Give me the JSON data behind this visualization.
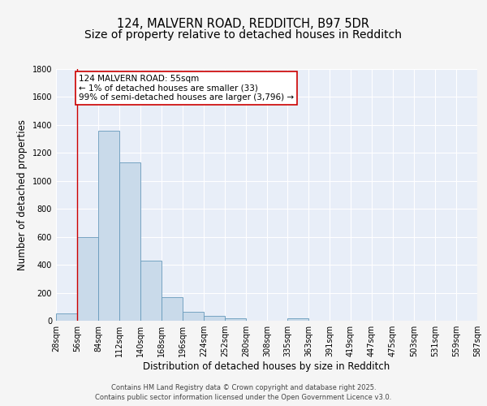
{
  "title_line1": "124, MALVERN ROAD, REDDITCH, B97 5DR",
  "title_line2": "Size of property relative to detached houses in Redditch",
  "xlabel": "Distribution of detached houses by size in Redditch",
  "ylabel": "Number of detached properties",
  "bar_values": [
    55,
    600,
    1360,
    1130,
    430,
    170,
    65,
    35,
    15,
    0,
    0,
    15,
    0,
    0,
    0,
    0,
    0,
    0,
    0,
    0
  ],
  "bin_edges": [
    28,
    56,
    84,
    112,
    140,
    168,
    196,
    224,
    252,
    280,
    308,
    335,
    363,
    391,
    419,
    447,
    475,
    503,
    531,
    559,
    587
  ],
  "bar_color": "#c9daea",
  "bar_edge_color": "#6699bb",
  "fig_background": "#f5f5f5",
  "plot_background": "#e8eef8",
  "grid_color": "#ffffff",
  "vline_x": 56,
  "vline_color": "#cc0000",
  "annotation_text": "124 MALVERN ROAD: 55sqm\n← 1% of detached houses are smaller (33)\n99% of semi-detached houses are larger (3,796) →",
  "annotation_box_facecolor": "#ffffff",
  "annotation_box_edgecolor": "#cc0000",
  "ylim": [
    0,
    1800
  ],
  "yticks": [
    0,
    200,
    400,
    600,
    800,
    1000,
    1200,
    1400,
    1600,
    1800
  ],
  "tick_labels": [
    "28sqm",
    "56sqm",
    "84sqm",
    "112sqm",
    "140sqm",
    "168sqm",
    "196sqm",
    "224sqm",
    "252sqm",
    "280sqm",
    "308sqm",
    "335sqm",
    "363sqm",
    "391sqm",
    "419sqm",
    "447sqm",
    "475sqm",
    "503sqm",
    "531sqm",
    "559sqm",
    "587sqm"
  ],
  "footer_line1": "Contains HM Land Registry data © Crown copyright and database right 2025.",
  "footer_line2": "Contains public sector information licensed under the Open Government Licence v3.0.",
  "title_fontsize": 10.5,
  "tick_label_fontsize": 7,
  "axis_label_fontsize": 8.5,
  "annotation_fontsize": 7.5,
  "footer_fontsize": 6
}
